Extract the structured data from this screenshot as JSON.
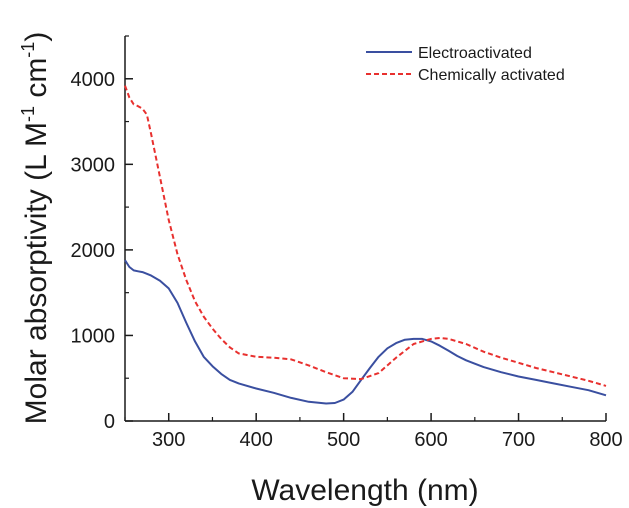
{
  "chart_data": {
    "type": "line",
    "title": "",
    "xlabel": "Wavelength (nm)",
    "ylabel_main": "Molar absorptivity (L M",
    "ylabel_sup1": "-1",
    "ylabel_mid": " cm",
    "ylabel_sup2": "-1",
    "ylabel_end": ")",
    "xlim": [
      250,
      800
    ],
    "ylim": [
      0,
      4500
    ],
    "xticks": [
      300,
      400,
      500,
      600,
      700,
      800
    ],
    "yticks": [
      0,
      1000,
      2000,
      3000,
      4000
    ],
    "grid": false,
    "legend_position": "top-right",
    "series": [
      {
        "name": "Electroactivated",
        "color": "#3a4fa0",
        "dash": "solid",
        "x": [
          250,
          255,
          260,
          265,
          270,
          275,
          280,
          290,
          300,
          310,
          320,
          330,
          340,
          350,
          360,
          370,
          380,
          400,
          420,
          440,
          460,
          480,
          490,
          500,
          510,
          520,
          530,
          540,
          550,
          560,
          570,
          580,
          590,
          600,
          610,
          620,
          630,
          640,
          650,
          660,
          680,
          700,
          720,
          740,
          760,
          780,
          800
        ],
        "y": [
          1880,
          1800,
          1760,
          1750,
          1740,
          1720,
          1700,
          1640,
          1550,
          1380,
          1150,
          930,
          750,
          640,
          550,
          480,
          440,
          380,
          330,
          270,
          225,
          205,
          210,
          250,
          340,
          480,
          620,
          750,
          850,
          910,
          950,
          960,
          960,
          930,
          880,
          820,
          760,
          710,
          670,
          630,
          570,
          520,
          480,
          440,
          400,
          360,
          300
        ]
      },
      {
        "name": "Chemically activated",
        "color": "#e8302e",
        "dash": "dashed",
        "x": [
          250,
          255,
          260,
          265,
          270,
          275,
          280,
          290,
          300,
          310,
          320,
          330,
          340,
          350,
          360,
          370,
          380,
          400,
          420,
          440,
          460,
          480,
          500,
          520,
          540,
          560,
          580,
          600,
          610,
          620,
          640,
          660,
          680,
          700,
          720,
          740,
          760,
          780,
          800
        ],
        "y": [
          3920,
          3780,
          3700,
          3680,
          3650,
          3580,
          3350,
          2850,
          2350,
          1950,
          1650,
          1400,
          1220,
          1080,
          960,
          860,
          790,
          750,
          740,
          720,
          650,
          570,
          500,
          490,
          560,
          740,
          900,
          960,
          970,
          960,
          900,
          810,
          740,
          680,
          620,
          570,
          520,
          470,
          410
        ]
      }
    ]
  }
}
